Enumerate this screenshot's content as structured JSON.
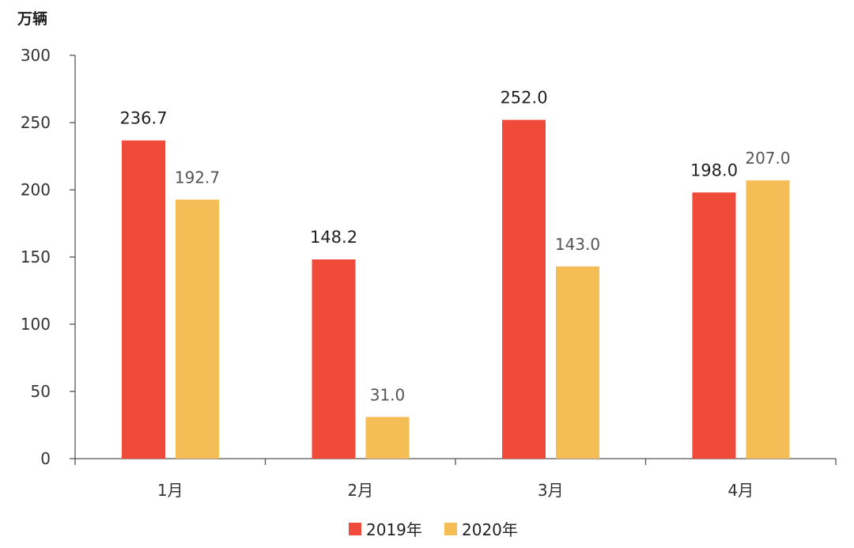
{
  "chart_data": {
    "type": "bar",
    "ylabel": "万辆",
    "ylim": [
      0,
      300
    ],
    "yticks": [
      0,
      50,
      100,
      150,
      200,
      250,
      300
    ],
    "categories": [
      "1月",
      "2月",
      "3月",
      "4月"
    ],
    "series": [
      {
        "name": "2019年",
        "color": "#f04a3a",
        "values": [
          236.7,
          148.2,
          252.0,
          198.0
        ],
        "labels": [
          "236.7",
          "148.2",
          "252.0",
          "198.0"
        ]
      },
      {
        "name": "2020年",
        "color": "#f5bd55",
        "values": [
          192.7,
          31.0,
          143.0,
          207.0
        ],
        "labels": [
          "192.7",
          "31.0",
          "143.0",
          "207.0"
        ]
      }
    ],
    "grid": false,
    "legend": "bottom-center"
  }
}
